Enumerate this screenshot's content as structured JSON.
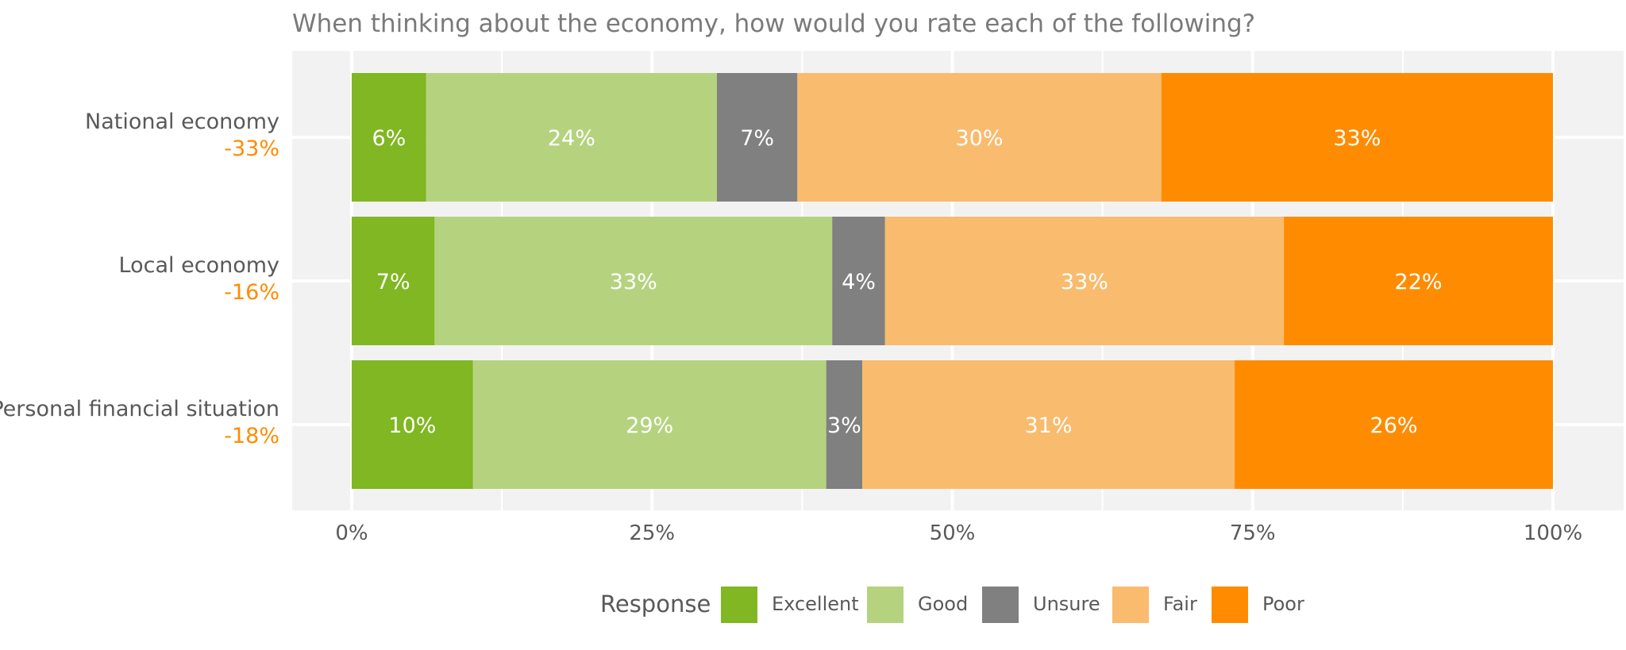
{
  "chart_data": {
    "type": "bar",
    "orientation": "horizontal",
    "stacked": true,
    "title": "When thinking about the economy, how would you rate each of the following?",
    "categories": [
      "National economy",
      "Local economy",
      "Personal financial situation"
    ],
    "net_labels": [
      "-33%",
      "-16%",
      "-18%"
    ],
    "series": [
      {
        "name": "Excellent",
        "color": "#80b722",
        "values": [
          6.2,
          6.9,
          10.1
        ],
        "labels": [
          "6%",
          "7%",
          "10%"
        ]
      },
      {
        "name": "Good",
        "color": "#b5d37f",
        "values": [
          24.2,
          33.1,
          29.4
        ],
        "labels": [
          "24%",
          "33%",
          "29%"
        ]
      },
      {
        "name": "Unsure",
        "color": "#808080",
        "values": [
          6.7,
          4.4,
          3.0
        ],
        "labels": [
          "7%",
          "4%",
          "3%"
        ]
      },
      {
        "name": "Fair",
        "color": "#f9bb6e",
        "values": [
          30.3,
          33.2,
          31.0
        ],
        "labels": [
          "30%",
          "33%",
          "31%"
        ]
      },
      {
        "name": "Poor",
        "color": "#ff8c00",
        "values": [
          32.6,
          22.4,
          26.5
        ],
        "labels": [
          "33%",
          "22%",
          "26%"
        ]
      }
    ],
    "xlim": [
      0,
      100
    ],
    "x_ticks": [
      0,
      25,
      50,
      75,
      100
    ],
    "x_tick_labels": [
      "0%",
      "25%",
      "50%",
      "75%",
      "100%"
    ],
    "grid": true,
    "legend": {
      "title": "Response",
      "position": "bottom"
    }
  }
}
